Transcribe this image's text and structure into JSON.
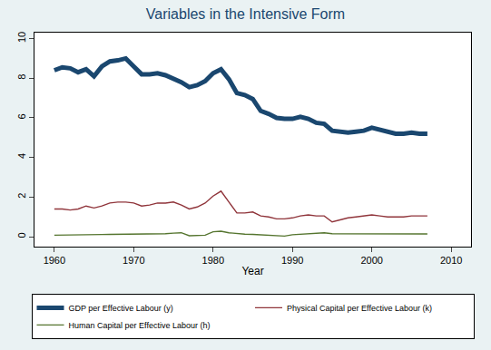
{
  "chart_data": {
    "type": "line",
    "title": "Variables in the Intensive Form",
    "x_label": "Year",
    "x": [
      1960,
      1961,
      1962,
      1963,
      1964,
      1965,
      1966,
      1967,
      1968,
      1969,
      1970,
      1971,
      1972,
      1973,
      1974,
      1975,
      1976,
      1977,
      1978,
      1979,
      1980,
      1981,
      1982,
      1983,
      1984,
      1985,
      1986,
      1987,
      1988,
      1989,
      1990,
      1991,
      1992,
      1993,
      1994,
      1995,
      1996,
      1997,
      1998,
      1999,
      2000,
      2001,
      2002,
      2003,
      2004,
      2005,
      2006,
      2007
    ],
    "series": [
      {
        "name": "GDP per Effective Labour (y)",
        "color": "#1a476f",
        "values": [
          8.4,
          8.55,
          8.5,
          8.3,
          8.45,
          8.1,
          8.6,
          8.85,
          8.9,
          9.0,
          8.6,
          8.2,
          8.2,
          8.25,
          8.15,
          8.0,
          7.8,
          7.55,
          7.65,
          7.85,
          8.25,
          8.45,
          7.95,
          7.25,
          7.15,
          6.95,
          6.35,
          6.2,
          6.0,
          5.95,
          5.95,
          6.05,
          5.95,
          5.75,
          5.7,
          5.35,
          5.3,
          5.25,
          5.3,
          5.35,
          5.5,
          5.4,
          5.25,
          5.2,
          5.2,
          5.25,
          5.2,
          5.2
        ]
      },
      {
        "name": "Physical Capital per Effective Labour (k)",
        "color": "#90353b",
        "values": [
          1.4,
          1.4,
          1.35,
          1.4,
          1.55,
          1.45,
          1.55,
          1.7,
          1.75,
          1.75,
          1.7,
          1.55,
          1.6,
          1.7,
          1.7,
          1.75,
          1.6,
          1.4,
          1.5,
          1.7,
          2.05,
          2.3,
          1.75,
          1.2,
          1.2,
          1.25,
          1.05,
          1.0,
          0.9,
          0.9,
          0.95,
          1.05,
          1.1,
          1.05,
          1.05,
          0.75,
          0.85,
          0.95,
          1.0,
          1.05,
          1.1,
          1.05,
          1.0,
          1.0,
          1.0,
          1.05,
          1.05,
          1.05
        ]
      },
      {
        "name": "Human Capital per Effective Labour (h)",
        "color": "#55752f",
        "values": [
          0.08,
          0.08,
          0.09,
          0.1,
          0.1,
          0.1,
          0.11,
          0.12,
          0.12,
          0.13,
          0.13,
          0.14,
          0.15,
          0.15,
          0.15,
          0.18,
          0.2,
          0.05,
          0.05,
          0.08,
          0.25,
          0.28,
          0.2,
          0.15,
          0.13,
          0.12,
          0.1,
          0.07,
          0.05,
          0.03,
          0.1,
          0.12,
          0.14,
          0.17,
          0.2,
          0.15,
          0.15,
          0.15,
          0.15,
          0.15,
          0.15,
          0.15,
          0.15,
          0.14,
          0.14,
          0.14,
          0.14,
          0.14
        ]
      }
    ],
    "xlim": [
      1957.5,
      2012.5
    ],
    "xticks": [
      1960,
      1970,
      1980,
      1990,
      2000,
      2010
    ],
    "ylim": [
      -0.5,
      10.3
    ],
    "yticks": [
      0,
      2,
      4,
      6,
      8,
      10
    ],
    "grid": false,
    "legend": "bottom"
  }
}
